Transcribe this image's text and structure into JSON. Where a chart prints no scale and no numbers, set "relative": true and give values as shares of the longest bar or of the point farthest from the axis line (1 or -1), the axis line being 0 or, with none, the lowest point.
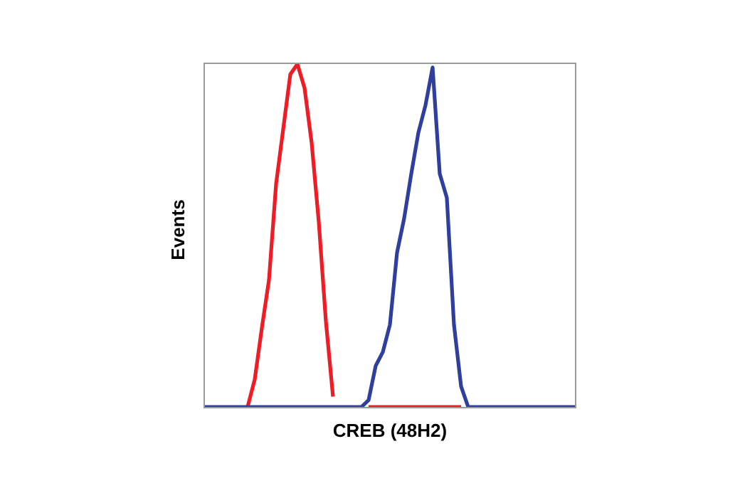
{
  "chart_data": {
    "type": "line",
    "relative": true,
    "xlabel": "CREB (48H2)",
    "ylabel": "Events",
    "grid": false,
    "legend": false,
    "marker": "none",
    "line_style": "solid",
    "categories": [
      null,
      null,
      null,
      null,
      null,
      null,
      null,
      null,
      null,
      null,
      null,
      null,
      null,
      null,
      null,
      null,
      null,
      null,
      null,
      null,
      null,
      null,
      null,
      null,
      null,
      null,
      null,
      null,
      null,
      null,
      null,
      null,
      null,
      null,
      null,
      null,
      null,
      null,
      null,
      null,
      null,
      null,
      null,
      null,
      null,
      null,
      null,
      null,
      null,
      null,
      null,
      null,
      null
    ],
    "series": [
      {
        "color": "#ee1c25",
        "values": [
          null,
          null,
          null,
          null,
          null,
          null,
          0,
          0.08,
          0.23,
          0.37,
          0.65,
          0.81,
          0.97,
          1,
          0.93,
          0.77,
          0.54,
          0.25,
          0.03,
          null,
          null,
          null,
          null,
          0,
          0,
          0,
          0,
          0,
          0,
          0,
          0,
          0,
          0,
          0,
          0,
          0,
          0,
          null,
          null,
          null,
          null,
          null,
          null,
          null,
          null,
          null,
          null,
          null,
          null,
          null,
          null,
          null,
          null
        ]
      },
      {
        "color": "#2e3f9e",
        "values": [
          0,
          0,
          0,
          0,
          0,
          0,
          0,
          0,
          0,
          0,
          0,
          0,
          0,
          0,
          0,
          0,
          0,
          0,
          0,
          0,
          0,
          0,
          0,
          0.02,
          0.12,
          0.16,
          0.24,
          0.45,
          0.55,
          0.68,
          0.8,
          0.88,
          0.99,
          0.68,
          0.61,
          0.24,
          0.06,
          0,
          0,
          0,
          0,
          0,
          0,
          0,
          0,
          0,
          0,
          0,
          0,
          0,
          0,
          0,
          0
        ]
      }
    ]
  }
}
